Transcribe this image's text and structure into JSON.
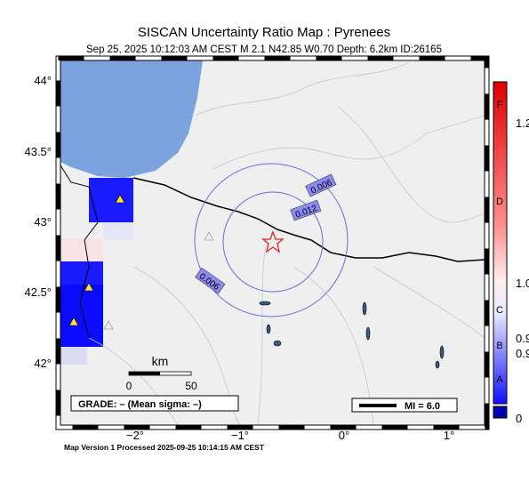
{
  "header": {
    "title": "SISCAN Uncertainty Ratio Map : Pyrenees",
    "subtitle": "Sep 25, 2025 10:12:03 AM CEST   M 2.1   N42.85 W0.70   Depth: 6.2km   ID:26165"
  },
  "map": {
    "lat_labels": [
      "44°",
      "43.5°",
      "43°",
      "42.5°",
      "42°"
    ],
    "lon_labels": [
      "−2°",
      "−1°",
      "0°",
      "1°"
    ],
    "contour_labels": [
      "0.006",
      "0.012",
      "0.006"
    ]
  },
  "scale_bar": {
    "unit": "km",
    "labels": [
      "0",
      "50"
    ]
  },
  "grade": "GRADE: – (Mean sigma: –)",
  "mi_legend": "MI = 6.0",
  "colorbar": {
    "grades": [
      "F",
      "D",
      "C",
      "B",
      "A"
    ],
    "labels": [
      "1.2",
      "1.0",
      "0.9",
      "0.9",
      "0"
    ]
  },
  "footer": "Map Version 1 Processed 2025-09-25 10:14:15 AM CEST"
}
